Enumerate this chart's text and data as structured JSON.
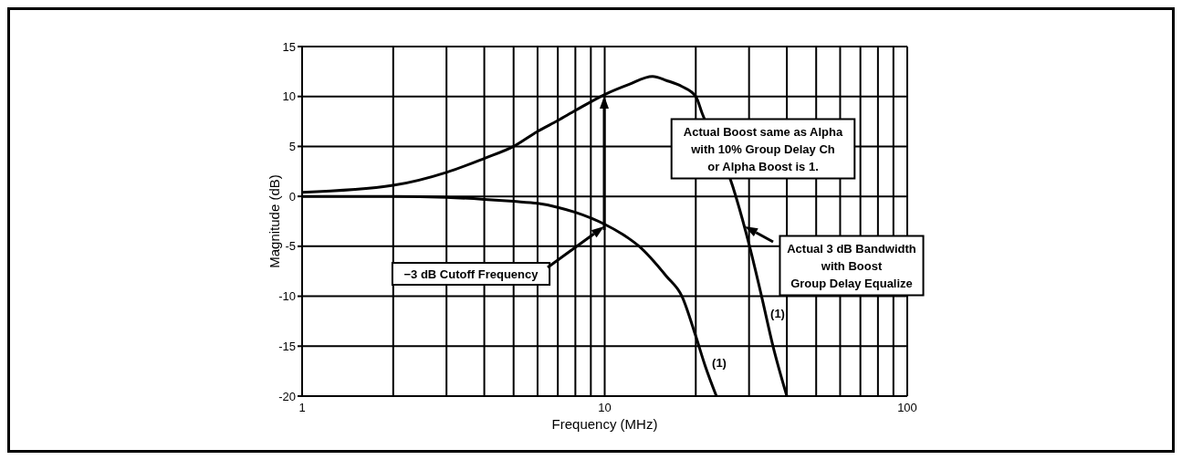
{
  "chart_data": {
    "type": "line",
    "xlabel": "Frequency (MHz)",
    "ylabel": "Magnitude (dB)",
    "log": "x",
    "grid": true,
    "xlim": [
      1,
      100
    ],
    "ylim": [
      -20,
      15
    ],
    "xticks": [
      1,
      {
        "value": 2,
        "label": null
      },
      {
        "value": 3,
        "label": null
      },
      {
        "value": 4,
        "label": null
      },
      {
        "value": 5,
        "label": null
      },
      {
        "value": 6,
        "label": null
      },
      {
        "value": 7,
        "label": null
      },
      {
        "value": 8,
        "label": null
      },
      {
        "value": 9,
        "label": null
      },
      10,
      {
        "value": 20,
        "label": null
      },
      {
        "value": 30,
        "label": null
      },
      {
        "value": 40,
        "label": null
      },
      {
        "value": 50,
        "label": null
      },
      {
        "value": 60,
        "label": null
      },
      {
        "value": 70,
        "label": null
      },
      {
        "value": 80,
        "label": null
      },
      {
        "value": 90,
        "label": null
      },
      100
    ],
    "yticks": [
      -20,
      -15,
      -10,
      -5,
      0,
      5,
      10,
      15
    ],
    "series": [
      {
        "color": "#000000",
        "x": [
          1,
          2,
          3,
          4,
          5,
          6,
          7,
          8,
          10,
          12,
          14.4,
          16,
          18,
          20,
          21,
          23,
          26.5,
          30,
          33,
          36,
          40
        ],
        "values": [
          0.4,
          1.1,
          2.4,
          3.8,
          5.0,
          6.5,
          7.6,
          8.6,
          10.2,
          11.2,
          12.0,
          11.6,
          11.0,
          10.0,
          8.3,
          null,
          1.0,
          -4.8,
          -10,
          -15,
          -20
        ]
      },
      {
        "color": "#000000",
        "x": [
          1,
          2,
          3,
          4,
          5,
          6,
          7,
          8,
          10,
          12,
          13,
          16,
          18,
          20,
          21.5,
          23.4
        ],
        "values": [
          0,
          0,
          -0.1,
          -0.3,
          -0.5,
          -0.7,
          -1.1,
          -1.6,
          -2.8,
          -4.2,
          -5,
          -8,
          -10,
          -14,
          -17,
          -20
        ]
      }
    ],
    "annotations": [
      "Actual Boost same as Alpha\nwith 10% Group Delay Ch\nor Alpha Boost is 1.",
      "−3 dB Cutoff Frequency",
      "Actual 3 dB Bandwidth\nwith Boost\nGroup Delay Equalize",
      "(1)",
      "(1)"
    ]
  }
}
